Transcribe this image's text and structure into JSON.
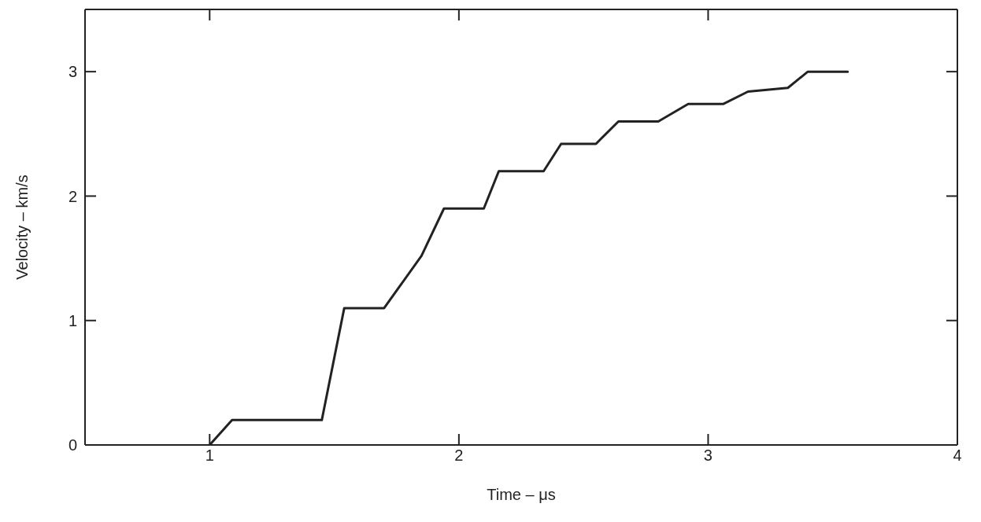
{
  "chart_data": {
    "type": "line",
    "xlabel": "Time – μs",
    "ylabel": "Velocity – km/s",
    "xlim": [
      0.5,
      4
    ],
    "xticks": [
      1,
      2,
      3,
      4
    ],
    "ylim": [
      0,
      3.5
    ],
    "yticks": [
      0,
      1,
      2,
      3
    ],
    "x": [
      1.0,
      1.09,
      1.45,
      1.54,
      1.7,
      1.85,
      1.94,
      2.1,
      2.16,
      2.34,
      2.41,
      2.55,
      2.64,
      2.8,
      2.92,
      3.06,
      3.16,
      3.32,
      3.4,
      3.56
    ],
    "series": [
      {
        "color": "#222222",
        "values": [
          0,
          0.2,
          0.2,
          1.1,
          1.1,
          1.52,
          1.9,
          1.9,
          2.2,
          2.2,
          2.42,
          2.42,
          2.6,
          2.6,
          2.74,
          2.74,
          2.84,
          2.87,
          3.0,
          3.0
        ]
      }
    ],
    "grid": false,
    "marker": "none",
    "line_style": "solid"
  }
}
